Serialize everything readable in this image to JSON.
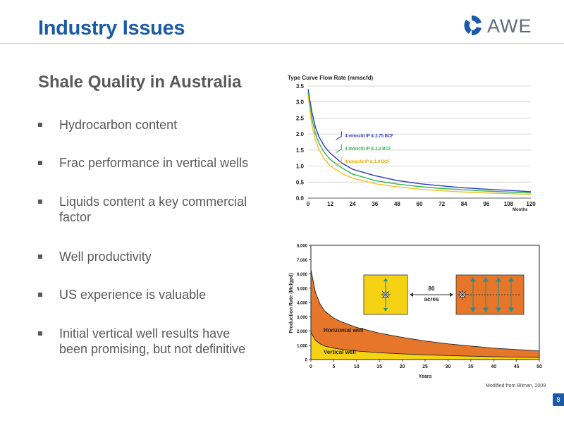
{
  "slide": {
    "title": "Industry Issues",
    "subtitle": "Shale Quality in Australia",
    "logo_text": "AWE",
    "page_number": "8",
    "credit": "Modified from Bilman, 2009"
  },
  "bullets": [
    [
      "Hydrocarbon content"
    ],
    [
      "Frac performance in vertical wells"
    ],
    [
      "Liquids content a key commercial",
      "factor"
    ],
    [
      "Well productivity"
    ],
    [
      "US experience is valuable"
    ],
    [
      "Initial vertical well results have",
      "been promising, but not definitive"
    ]
  ],
  "colors": {
    "title": "#1a5aa6",
    "series_blue": "#2b39c8",
    "series_green": "#2fb44a",
    "series_yellow": "#f0c020",
    "horizontal_fill": "#e8762a",
    "vertical_fill": "#f5d314"
  },
  "chart_data": [
    {
      "type": "line",
      "title": "Type Curve Flow Rate (mmscfd)",
      "xlabel": "Months",
      "ylabel": "",
      "xlim": [
        0,
        120
      ],
      "ylim": [
        0,
        3.5
      ],
      "xticks": [
        "0",
        "12",
        "24",
        "36",
        "48",
        "60",
        "72",
        "84",
        "96",
        "108",
        "120"
      ],
      "yticks": [
        "0.0",
        "0.5",
        "1.0",
        "1.5",
        "2.0",
        "2.5",
        "3.0",
        "3.5"
      ],
      "grid": true,
      "series": [
        {
          "name": "4 mmscfd IP & 2.75 BCF",
          "color": "#2b39c8",
          "x": [
            0,
            2,
            4,
            6,
            9,
            12,
            18,
            24,
            36,
            48,
            60,
            72,
            84,
            96,
            108,
            120
          ],
          "y": [
            3.4,
            2.7,
            2.2,
            1.9,
            1.6,
            1.4,
            1.1,
            0.9,
            0.7,
            0.55,
            0.45,
            0.38,
            0.32,
            0.28,
            0.24,
            0.2
          ]
        },
        {
          "name": "4 mmscfd IP & 2.2 BCF",
          "color": "#2fb44a",
          "x": [
            0,
            2,
            4,
            6,
            9,
            12,
            18,
            24,
            36,
            48,
            60,
            72,
            84,
            96,
            108,
            120
          ],
          "y": [
            3.3,
            2.5,
            2.0,
            1.7,
            1.4,
            1.2,
            0.95,
            0.75,
            0.55,
            0.44,
            0.36,
            0.3,
            0.26,
            0.22,
            0.19,
            0.16
          ]
        },
        {
          "name": "4mmscfd IP & 1.8 BCF",
          "color": "#f0c020",
          "x": [
            0,
            2,
            4,
            6,
            9,
            12,
            18,
            24,
            36,
            48,
            60,
            72,
            84,
            96,
            108,
            120
          ],
          "y": [
            3.2,
            2.3,
            1.8,
            1.5,
            1.2,
            1.0,
            0.78,
            0.62,
            0.45,
            0.35,
            0.28,
            0.23,
            0.19,
            0.16,
            0.14,
            0.12
          ]
        }
      ]
    },
    {
      "type": "area",
      "title": "",
      "xlabel": "Years",
      "ylabel": "Production Rate (Mcfgpd)",
      "xlim": [
        0,
        50
      ],
      "ylim": [
        0,
        8000
      ],
      "xticks": [
        "0",
        "5",
        "10",
        "15",
        "20",
        "25",
        "30",
        "35",
        "40",
        "45",
        "50"
      ],
      "yticks": [
        "0",
        "1,000",
        "2,000",
        "3,000",
        "4,000",
        "5,000",
        "6,000",
        "7,000",
        "8,000"
      ],
      "series": [
        {
          "name": "Horizontal well",
          "color": "#e8762a",
          "x": [
            0,
            1,
            2,
            3,
            5,
            7,
            10,
            15,
            20,
            25,
            30,
            35,
            40,
            45,
            50
          ],
          "y": [
            6300,
            4700,
            3900,
            3400,
            2900,
            2600,
            2250,
            1850,
            1550,
            1300,
            1100,
            950,
            800,
            700,
            600
          ]
        },
        {
          "name": "Vertical well",
          "color": "#f5d314",
          "x": [
            0,
            1,
            2,
            3,
            5,
            7,
            10,
            15,
            20,
            25,
            30,
            35,
            40,
            45,
            50
          ],
          "y": [
            1900,
            1350,
            1100,
            950,
            800,
            700,
            600,
            480,
            400,
            330,
            280,
            240,
            200,
            170,
            150
          ]
        }
      ],
      "annotation": {
        "spacing_value": "80",
        "spacing_unit": "acres"
      }
    }
  ]
}
